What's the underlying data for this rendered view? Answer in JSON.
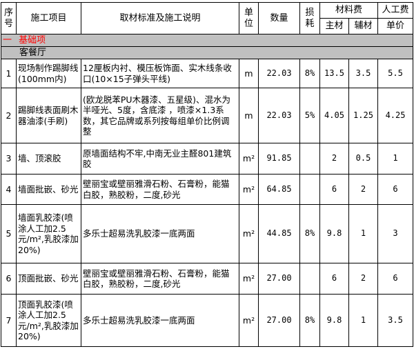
{
  "header": {
    "seq": "序号",
    "item": "施工项目",
    "desc": "取材标准及施工说明",
    "unit": "单位",
    "qty": "数量",
    "loss": "损耗",
    "material_fee": "材料费",
    "main_material": "主材",
    "aux_material": "辅材",
    "labor_fee": "人工费",
    "unit_price": "单价"
  },
  "section": {
    "prefix": "一",
    "title": "基础项",
    "color": "#ff0000"
  },
  "room": "客餐厅",
  "rows": [
    {
      "no": "1",
      "item": "现场制作踢脚线(100mm内)",
      "desc": "12厘板内衬、模压板饰面、实木线条收口(10×15子弹头平线)",
      "unit": "m",
      "qty": "22.03",
      "loss": "8%",
      "main": "13.5",
      "aux": "3.5",
      "labor": "5.5"
    },
    {
      "no": "2",
      "item": "踢脚线表面刷木器油漆(手刷)",
      "desc": "(欧龙脱苯PU木器漆、五星级)、混水为半哑光、5度，含底漆 ，喷漆×1.3系数，其它品牌或系列按每组单价比例调整",
      "unit": "m",
      "qty": "22.03",
      "loss": "5%",
      "main": "4.05",
      "aux": "1.25",
      "labor": "4.25"
    },
    {
      "no": "3",
      "item": "墙、顶滚胶",
      "desc": "原墙面结构不牢,中南无业主醛801建筑胶",
      "unit": "m²",
      "qty": "91.85",
      "loss": "",
      "main": "2",
      "aux": "0.5",
      "labor": "1"
    },
    {
      "no": "4",
      "item": "墙面批嵌、砂光",
      "desc": "壁丽宝或壁丽雅滑石粉、石膏粉，能猫白胶，熟胶粉，二度,砂光",
      "unit": "m²",
      "qty": "64.85",
      "loss": "",
      "main": "6",
      "aux": "2",
      "labor": "6"
    },
    {
      "no": "5",
      "item": "墙面乳胶漆(喷涂人工加2.5元/m²,乳胶漆加20%)",
      "desc": "多乐士超易洗乳胶漆一底两面",
      "unit": "m²",
      "qty": "44.85",
      "loss": "8%",
      "main": "9.8",
      "aux": "1",
      "labor": "3"
    },
    {
      "no": "6",
      "item": "顶面批嵌、砂光",
      "desc": "壁丽宝或壁丽雅滑石粉、石膏粉，能猫白胶，熟胶粉，二度,砂光",
      "unit": "m²",
      "qty": "27.00",
      "loss": "",
      "main": "6",
      "aux": "2",
      "labor": "6"
    },
    {
      "no": "7",
      "item": "顶面乳胶漆(喷涂人工加2.5元/m²,乳胶漆加20%)",
      "desc": "多乐士超易洗乳胶漆一底两面",
      "unit": "m²",
      "qty": "27.00",
      "loss": "8%",
      "main": "9.8",
      "aux": "1",
      "labor": "3.5"
    }
  ]
}
